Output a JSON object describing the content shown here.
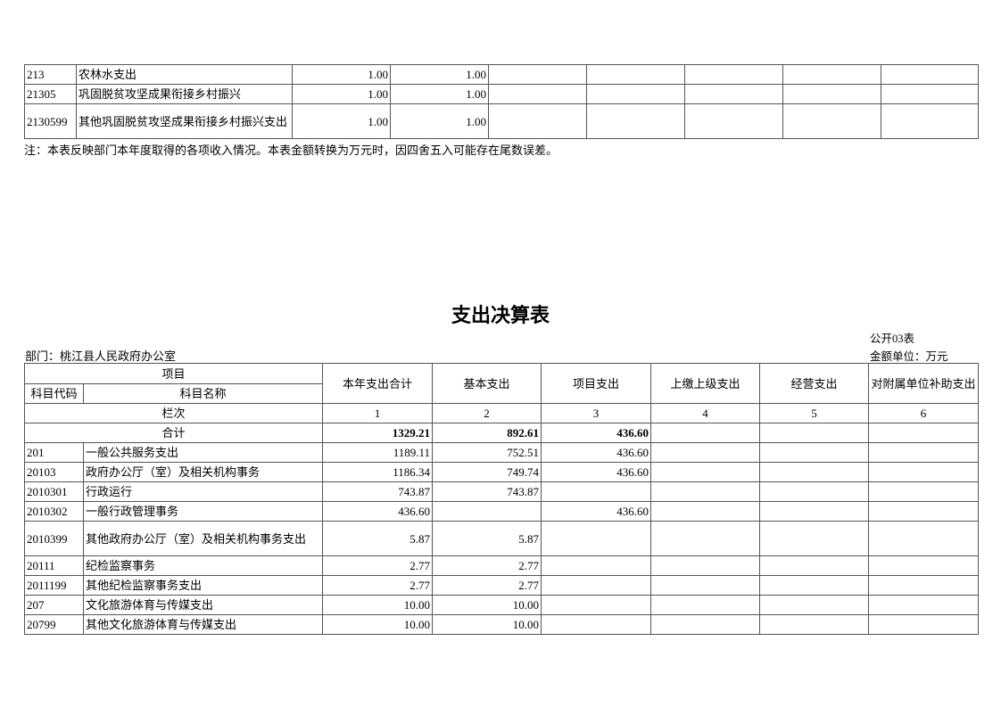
{
  "top_table": {
    "rows": [
      {
        "code": "213",
        "name": "农林水支出",
        "values": [
          "1.00",
          "1.00",
          "",
          "",
          "",
          "",
          "",
          ""
        ]
      },
      {
        "code": "21305",
        "name": "巩固脱贫攻坚成果衔接乡村振兴",
        "values": [
          "1.00",
          "1.00",
          "",
          "",
          "",
          "",
          "",
          ""
        ]
      },
      {
        "code": "2130599",
        "name": "其他巩固脱贫攻坚成果衔接乡村振兴支出",
        "values": [
          "1.00",
          "1.00",
          "",
          "",
          "",
          "",
          "",
          ""
        ]
      }
    ],
    "note": "注：本表反映部门本年度取得的各项收入情况。本表金额转换为万元时，因四舍五入可能存在尾数误差。"
  },
  "expenditure": {
    "title": "支出决算表",
    "table_no": "公开03表",
    "unit": "金额单位：万元",
    "department": "部门：桃江县人民政府办公室",
    "headers": {
      "item": "项目",
      "code": "科目代码",
      "name": "科目名称",
      "cols": [
        "本年支出合计",
        "基本支出",
        "项目支出",
        "上缴上级支出",
        "经营支出",
        "对附属单位补助支出"
      ],
      "index_label": "栏次",
      "index": [
        "1",
        "2",
        "3",
        "4",
        "5",
        "6"
      ]
    },
    "total": {
      "label": "合计",
      "values": [
        "1329.21",
        "892.61",
        "436.60",
        "",
        "",
        ""
      ]
    },
    "rows": [
      {
        "code": "201",
        "name": "一般公共服务支出",
        "values": [
          "1189.11",
          "752.51",
          "436.60",
          "",
          "",
          ""
        ]
      },
      {
        "code": "20103",
        "name": "政府办公厅（室）及相关机构事务",
        "values": [
          "1186.34",
          "749.74",
          "436.60",
          "",
          "",
          ""
        ]
      },
      {
        "code": "2010301",
        "name": "行政运行",
        "values": [
          "743.87",
          "743.87",
          "",
          "",
          "",
          ""
        ]
      },
      {
        "code": "2010302",
        "name": "一般行政管理事务",
        "values": [
          "436.60",
          "",
          "436.60",
          "",
          "",
          ""
        ]
      },
      {
        "code": "2010399",
        "name": "其他政府办公厅（室）及相关机构事务支出",
        "values": [
          "5.87",
          "5.87",
          "",
          "",
          "",
          ""
        ]
      },
      {
        "code": "20111",
        "name": "纪检监察事务",
        "values": [
          "2.77",
          "2.77",
          "",
          "",
          "",
          ""
        ]
      },
      {
        "code": "2011199",
        "name": "其他纪检监察事务支出",
        "values": [
          "2.77",
          "2.77",
          "",
          "",
          "",
          ""
        ]
      },
      {
        "code": "207",
        "name": "文化旅游体育与传媒支出",
        "values": [
          "10.00",
          "10.00",
          "",
          "",
          "",
          ""
        ]
      },
      {
        "code": "20799",
        "name": "其他文化旅游体育与传媒支出",
        "values": [
          "10.00",
          "10.00",
          "",
          "",
          "",
          ""
        ]
      }
    ]
  }
}
